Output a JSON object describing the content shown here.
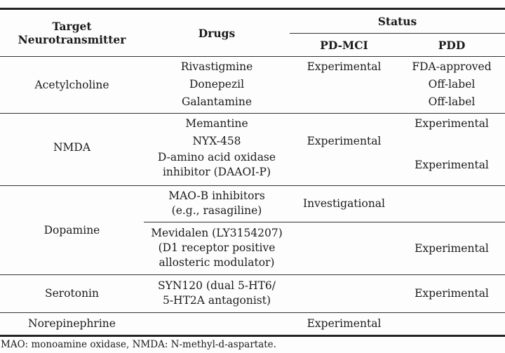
{
  "header": {
    "target": "Target Neurotransmitter",
    "drugs": "Drugs",
    "status": "Status",
    "pdmci": "PD-MCI",
    "pdd": "PDD"
  },
  "sections": {
    "acetylcholine": {
      "target": "Acetylcholine",
      "drugs": [
        "Rivastigmine",
        "Donepezil",
        "Galantamine"
      ],
      "pdmci": "Experimental",
      "pdd": [
        "FDA-approved",
        "Off-label",
        "Off-label"
      ]
    },
    "nmda": {
      "target": "NMDA",
      "drug1": "Memantine",
      "drug2": "NYX-458",
      "drug3_lines": [
        "D-amino acid oxidase",
        "inhibitor (DAAOI-P)"
      ],
      "pdmci": "Experimental",
      "pdd1": "Experimental",
      "pdd3": "Experimental"
    },
    "dopamine": {
      "target": "Dopamine",
      "sub1_drug_lines": [
        "MAO-B inhibitors",
        "(e.g., rasagiline)"
      ],
      "sub1_pdmci": "Investigational",
      "sub2_drug_lines": [
        "Mevidalen (LY3154207)",
        "(D1 receptor positive",
        "allosteric modulator)"
      ],
      "sub2_pdd": "Experimental"
    },
    "serotonin": {
      "target": "Serotonin",
      "drug_lines": [
        "SYN120 (dual 5-HT6/",
        "5-HT2A antagonist)"
      ],
      "pdd": "Experimental"
    },
    "norepinephrine": {
      "target": "Norepinephrine",
      "pdmci": "Experimental"
    }
  },
  "footnote": "MAO: monoamine oxidase, NMDA: N-methyl-d-aspartate."
}
